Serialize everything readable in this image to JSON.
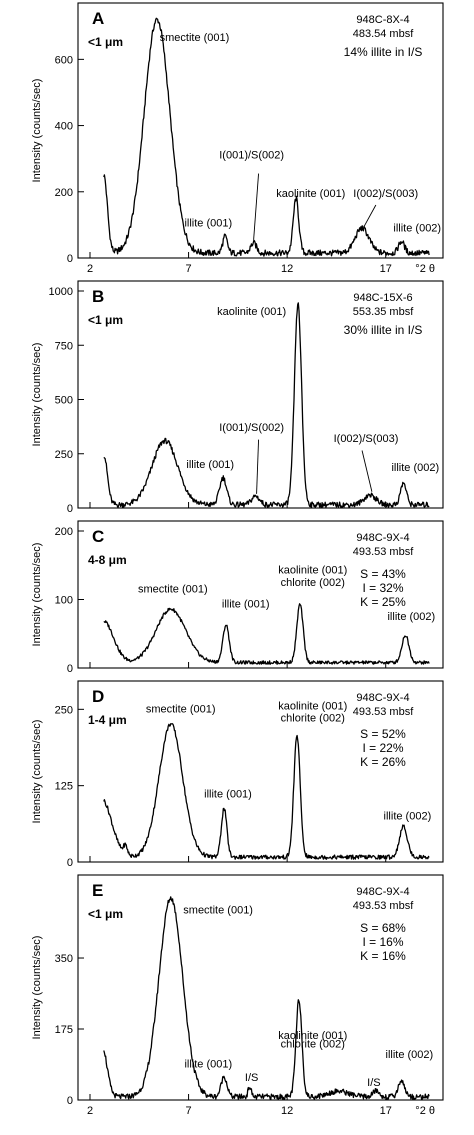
{
  "chart_data": [
    {
      "panel_letter": "A",
      "type": "line",
      "fraction": "<1 μm",
      "ylabel": "Intensity (counts/sec)",
      "xunit": "°2 θ",
      "xlim": [
        2,
        19.5
      ],
      "ylim": [
        0,
        740
      ],
      "xticks": [
        2,
        7,
        12,
        17
      ],
      "yticks": [
        0,
        200,
        400,
        600
      ],
      "sample": [
        "948C-8X-4",
        "483.54 mbsf",
        "14% illite in I/S"
      ],
      "peaks": [
        {
          "x": 2.7,
          "y": 235,
          "w": 0.18
        },
        {
          "x": 5.4,
          "y": 705,
          "w": 0.65
        },
        {
          "x": 8.85,
          "y": 50,
          "w": 0.12
        },
        {
          "x": 10.3,
          "y": 30,
          "w": 0.15
        },
        {
          "x": 12.45,
          "y": 165,
          "w": 0.14
        },
        {
          "x": 15.8,
          "y": 75,
          "w": 0.35
        },
        {
          "x": 17.8,
          "y": 35,
          "w": 0.15
        }
      ],
      "baseline": 15,
      "labels": [
        {
          "text": "smectite (001)",
          "x": 7.3,
          "y": 655
        },
        {
          "text": "illite (001)",
          "x": 8.0,
          "y": 95
        },
        {
          "text": "I(001)/S(002)",
          "x": 10.2,
          "y": 300
        },
        {
          "text": "kaolinite (001)",
          "x": 13.2,
          "y": 185
        },
        {
          "text": "I(002)/S(003)",
          "x": 17.0,
          "y": 185
        },
        {
          "text": "illite (002)",
          "x": 18.6,
          "y": 80
        }
      ],
      "leaders": [
        {
          "x1": 10.55,
          "y1": 255,
          "x2": 10.3,
          "y2": 55
        },
        {
          "x1": 16.5,
          "y1": 160,
          "x2": 15.9,
          "y2": 95
        }
      ]
    },
    {
      "panel_letter": "B",
      "type": "line",
      "fraction": "<1 μm",
      "ylabel": "Intensity (counts/sec)",
      "xunit": "",
      "xlim": [
        2,
        19.5
      ],
      "ylim": [
        0,
        1000
      ],
      "xticks": [
        2,
        7,
        12,
        17
      ],
      "yticks": [
        0,
        250,
        500,
        750,
        1000
      ],
      "sample": [
        "948C-15X-6",
        "553.35 mbsf",
        "30% illite in I/S"
      ],
      "peaks": [
        {
          "x": 2.7,
          "y": 230,
          "w": 0.18
        },
        {
          "x": 5.8,
          "y": 295,
          "w": 0.65
        },
        {
          "x": 8.75,
          "y": 125,
          "w": 0.18
        },
        {
          "x": 10.4,
          "y": 40,
          "w": 0.2
        },
        {
          "x": 12.55,
          "y": 925,
          "w": 0.18
        },
        {
          "x": 16.2,
          "y": 45,
          "w": 0.3
        },
        {
          "x": 17.9,
          "y": 100,
          "w": 0.15
        }
      ],
      "baseline": 15,
      "labels": [
        {
          "text": "kaolinite (001)",
          "x": 10.2,
          "y": 890
        },
        {
          "text": "I(001)/S(002)",
          "x": 10.2,
          "y": 355
        },
        {
          "text": "illite (001)",
          "x": 8.1,
          "y": 185
        },
        {
          "text": "I(002)/S(003)",
          "x": 16.0,
          "y": 305
        },
        {
          "text": "illite (002)",
          "x": 18.5,
          "y": 170
        }
      ],
      "leaders": [
        {
          "x1": 10.55,
          "y1": 315,
          "x2": 10.45,
          "y2": 65
        },
        {
          "x1": 15.8,
          "y1": 265,
          "x2": 16.3,
          "y2": 75
        }
      ]
    },
    {
      "panel_letter": "C",
      "type": "line",
      "fraction": "4-8 μm",
      "ylabel": "Intensity (counts/sec)",
      "xunit": "",
      "xlim": [
        2,
        19.5
      ],
      "ylim": [
        0,
        200
      ],
      "xticks": [
        2,
        7,
        12,
        17
      ],
      "yticks": [
        0,
        100,
        200
      ],
      "sample": [
        "948C-9X-4",
        "493.53 mbsf"
      ],
      "composition": [
        "S = 43%",
        "I = 32%",
        "K = 25%"
      ],
      "peaks": [
        {
          "x": 2.7,
          "y": 60,
          "w": 0.5
        },
        {
          "x": 6.1,
          "y": 78,
          "w": 0.75
        },
        {
          "x": 8.9,
          "y": 55,
          "w": 0.16
        },
        {
          "x": 12.65,
          "y": 85,
          "w": 0.16
        },
        {
          "x": 18.0,
          "y": 40,
          "w": 0.18
        }
      ],
      "baseline": 8,
      "labels": [
        {
          "text": "smectite (001)",
          "x": 6.2,
          "y": 110
        },
        {
          "text": "illite (001)",
          "x": 9.9,
          "y": 88
        },
        {
          "text": "kaolinite (001)",
          "x": 13.3,
          "y": 138
        },
        {
          "text": "chlorite (002)",
          "x": 13.3,
          "y": 120
        },
        {
          "text": "illite (002)",
          "x": 18.3,
          "y": 70
        }
      ],
      "leaders": []
    },
    {
      "panel_letter": "D",
      "type": "line",
      "fraction": "1-4 μm",
      "ylabel": "Intensity (counts/sec)",
      "xunit": "",
      "xlim": [
        2,
        19.5
      ],
      "ylim": [
        0,
        280
      ],
      "xticks": [
        2,
        7,
        12,
        17
      ],
      "yticks": [
        0,
        125,
        250
      ],
      "sample": [
        "948C-9X-4",
        "493.53 mbsf"
      ],
      "composition": [
        "S = 52%",
        "I = 22%",
        "K = 26%"
      ],
      "peaks": [
        {
          "x": 2.6,
          "y": 95,
          "w": 0.5
        },
        {
          "x": 3.8,
          "y": 15,
          "w": 0.1
        },
        {
          "x": 6.1,
          "y": 218,
          "w": 0.6
        },
        {
          "x": 8.8,
          "y": 80,
          "w": 0.14
        },
        {
          "x": 12.5,
          "y": 200,
          "w": 0.16
        },
        {
          "x": 17.9,
          "y": 50,
          "w": 0.2
        }
      ],
      "baseline": 8,
      "labels": [
        {
          "text": "smectite (001)",
          "x": 6.6,
          "y": 245
        },
        {
          "text": "illite (001)",
          "x": 9.0,
          "y": 106
        },
        {
          "text": "kaolinite (001)",
          "x": 13.3,
          "y": 250
        },
        {
          "text": "chlorite (002)",
          "x": 13.3,
          "y": 230
        },
        {
          "text": "illite (002)",
          "x": 18.1,
          "y": 70
        }
      ],
      "leaders": []
    },
    {
      "panel_letter": "E",
      "type": "line",
      "fraction": "<1 μm",
      "ylabel": "Intensity (counts/sec)",
      "xunit": "°2 θ",
      "xlim": [
        2,
        19.5
      ],
      "ylim": [
        0,
        530
      ],
      "xticks": [
        2,
        7,
        12,
        17
      ],
      "yticks": [
        0,
        175,
        350
      ],
      "sample": [
        "948C-9X-4",
        "493.53 mbsf"
      ],
      "composition": [
        "S = 68%",
        "I = 16%",
        "K = 16%"
      ],
      "peaks": [
        {
          "x": 2.6,
          "y": 130,
          "w": 0.25
        },
        {
          "x": 6.1,
          "y": 490,
          "w": 0.6
        },
        {
          "x": 8.8,
          "y": 50,
          "w": 0.15
        },
        {
          "x": 10.1,
          "y": 25,
          "w": 0.08
        },
        {
          "x": 12.6,
          "y": 240,
          "w": 0.15
        },
        {
          "x": 14.6,
          "y": 14,
          "w": 0.5
        },
        {
          "x": 16.5,
          "y": 15,
          "w": 0.15
        },
        {
          "x": 17.8,
          "y": 40,
          "w": 0.16
        }
      ],
      "baseline": 8,
      "labels": [
        {
          "text": "smectite (001)",
          "x": 8.5,
          "y": 460
        },
        {
          "text": "illite (001)",
          "x": 8.0,
          "y": 80
        },
        {
          "text": "I/S",
          "x": 10.2,
          "y": 47
        },
        {
          "text": "kaolinite (001)",
          "x": 13.3,
          "y": 150
        },
        {
          "text": "chlorite (002)",
          "x": 13.3,
          "y": 130
        },
        {
          "text": "I/S",
          "x": 16.4,
          "y": 35
        },
        {
          "text": "illite (002)",
          "x": 18.2,
          "y": 103
        }
      ],
      "leaders": []
    }
  ]
}
